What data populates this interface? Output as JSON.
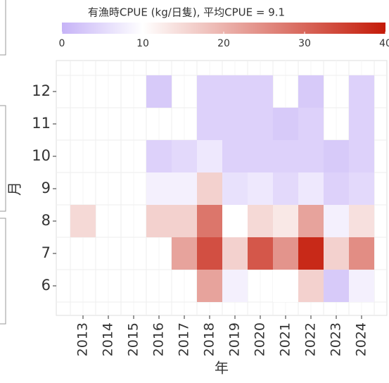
{
  "chart_data": {
    "type": "heatmap",
    "colorbar_title": "有漁時CPUE (kg/日隻), 平均CPUE = 9.1",
    "x_label": "年",
    "y_label": "月",
    "x": [
      "2013",
      "2014",
      "2015",
      "2016",
      "2017",
      "2018",
      "2019",
      "2020",
      "2021",
      "2022",
      "2023",
      "2024"
    ],
    "y": [
      "12",
      "11",
      "10",
      "9",
      "8",
      "7",
      "6"
    ],
    "values": [
      [
        null,
        null,
        null,
        3,
        null,
        4,
        4,
        4,
        null,
        3,
        null,
        4
      ],
      [
        null,
        null,
        null,
        null,
        null,
        4,
        4,
        4,
        3,
        4,
        null,
        4
      ],
      [
        null,
        null,
        null,
        4,
        5,
        7,
        4,
        4,
        4,
        4,
        3,
        4
      ],
      [
        null,
        null,
        null,
        8,
        8,
        16,
        6,
        7,
        5,
        7,
        4,
        5
      ],
      [
        15,
        null,
        null,
        16,
        16,
        28,
        10,
        15,
        13,
        22,
        8,
        14
      ],
      [
        null,
        null,
        null,
        null,
        22,
        33,
        16,
        32,
        24,
        38,
        16,
        25
      ],
      [
        null,
        null,
        null,
        null,
        null,
        22,
        8,
        null,
        10,
        16,
        3,
        8
      ]
    ],
    "colorscale": [
      "#c6b3f7",
      "#ffffff",
      "#c41a08"
    ],
    "color_stops": [
      0,
      10,
      40
    ],
    "clim": [
      0,
      40
    ],
    "cticks": [
      0,
      10,
      20,
      30,
      40
    ]
  }
}
